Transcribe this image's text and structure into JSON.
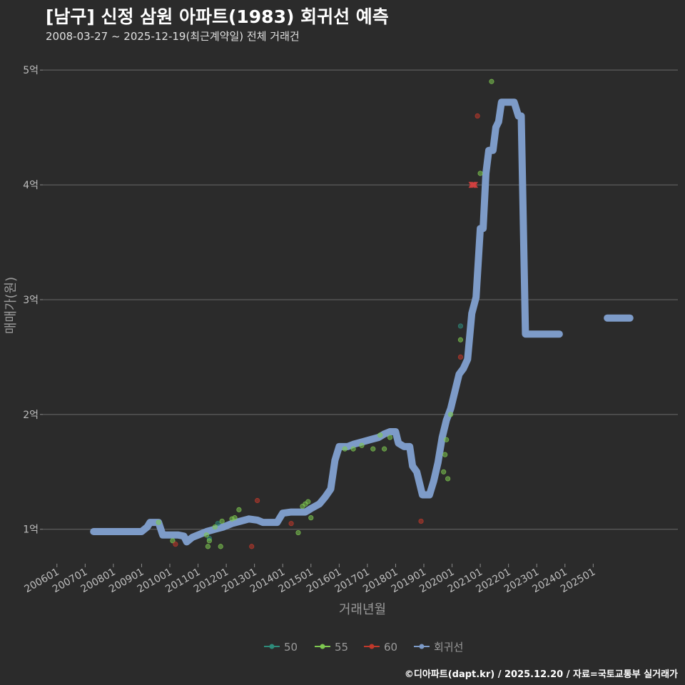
{
  "title": "[남구] 신정 삼원 아파트(1983) 회귀선 예측",
  "subtitle": "2008-03-27 ~ 2025-12-19(최근계약일) 전체 거래건",
  "caption": "©디아파트(dapt.kr) / 2025.12.20 / 자료=국토교통부 실거래가",
  "chart_data": {
    "type": "scatter",
    "title": "[남구] 신정 삼원 아파트(1983) 회귀선 예측",
    "xlabel": "거래년월",
    "ylabel": "매매가(원)",
    "ylim": [
      0.7,
      5.2
    ],
    "xlim": [
      2005.5,
      2028.0
    ],
    "grid": true,
    "legend_position": "bottom",
    "y_ticks": [
      {
        "value": 1,
        "label": "1억"
      },
      {
        "value": 2,
        "label": "2억"
      },
      {
        "value": 3,
        "label": "3억"
      },
      {
        "value": 4,
        "label": "4억"
      },
      {
        "value": 5,
        "label": "5억"
      }
    ],
    "x_ticks": [
      {
        "value": 2006.0,
        "label": "200601"
      },
      {
        "value": 2007.0,
        "label": "200701"
      },
      {
        "value": 2008.0,
        "label": "200801"
      },
      {
        "value": 2009.0,
        "label": "200901"
      },
      {
        "value": 2010.0,
        "label": "201001"
      },
      {
        "value": 2011.0,
        "label": "201101"
      },
      {
        "value": 2012.0,
        "label": "201201"
      },
      {
        "value": 2013.0,
        "label": "201301"
      },
      {
        "value": 2014.0,
        "label": "201401"
      },
      {
        "value": 2015.0,
        "label": "201501"
      },
      {
        "value": 2016.0,
        "label": "201601"
      },
      {
        "value": 2017.0,
        "label": "201701"
      },
      {
        "value": 2018.0,
        "label": "201801"
      },
      {
        "value": 2019.0,
        "label": "201901"
      },
      {
        "value": 2020.0,
        "label": "202001"
      },
      {
        "value": 2021.0,
        "label": "202101"
      },
      {
        "value": 2022.0,
        "label": "202201"
      },
      {
        "value": 2023.0,
        "label": "202301"
      },
      {
        "value": 2024.0,
        "label": "202401"
      },
      {
        "value": 2025.0,
        "label": "202501"
      }
    ],
    "series": [
      {
        "name": "50",
        "kind": "points",
        "color": "#2e8b7a",
        "points": [
          [
            2011.4,
            0.92
          ],
          [
            2011.7,
            1.05
          ],
          [
            2020.3,
            2.77
          ]
        ]
      },
      {
        "name": "55",
        "kind": "points",
        "color": "#7ec850",
        "points": [
          [
            2009.6,
            1.06
          ],
          [
            2010.1,
            0.9
          ],
          [
            2011.3,
            0.95
          ],
          [
            2011.35,
            0.85
          ],
          [
            2011.4,
            0.9
          ],
          [
            2011.6,
            1.02
          ],
          [
            2011.8,
            0.85
          ],
          [
            2011.85,
            1.07
          ],
          [
            2012.2,
            1.09
          ],
          [
            2012.3,
            1.1
          ],
          [
            2012.45,
            1.17
          ],
          [
            2014.55,
            0.97
          ],
          [
            2014.7,
            1.2
          ],
          [
            2014.8,
            1.22
          ],
          [
            2014.9,
            1.24
          ],
          [
            2015.0,
            1.1
          ],
          [
            2016.2,
            1.7
          ],
          [
            2016.5,
            1.7
          ],
          [
            2016.8,
            1.73
          ],
          [
            2017.2,
            1.7
          ],
          [
            2017.45,
            1.82
          ],
          [
            2017.6,
            1.7
          ],
          [
            2017.8,
            1.8
          ],
          [
            2019.7,
            1.5
          ],
          [
            2019.75,
            1.65
          ],
          [
            2019.8,
            1.78
          ],
          [
            2019.85,
            1.44
          ],
          [
            2019.95,
            2.0
          ],
          [
            2020.3,
            2.65
          ],
          [
            2021.0,
            4.1
          ],
          [
            2021.4,
            4.9
          ]
        ]
      },
      {
        "name": "60",
        "kind": "points",
        "color": "#c0392b",
        "points": [
          [
            2010.2,
            0.87
          ],
          [
            2012.9,
            0.85
          ],
          [
            2013.1,
            1.25
          ],
          [
            2014.3,
            1.05
          ],
          [
            2018.9,
            1.07
          ],
          [
            2020.3,
            2.5
          ],
          [
            2020.7,
            4.0
          ],
          [
            2020.75,
            4.0
          ],
          [
            2020.8,
            4.0
          ],
          [
            2020.9,
            4.6
          ]
        ]
      },
      {
        "name": "회귀선",
        "kind": "line",
        "color": "#7d9bc8",
        "segments": [
          [
            [
              2007.3,
              0.98
            ],
            [
              2009.0,
              0.98
            ],
            [
              2009.2,
              1.02
            ],
            [
              2009.3,
              1.06
            ],
            [
              2009.6,
              1.06
            ],
            [
              2009.75,
              0.95
            ],
            [
              2010.0,
              0.95
            ],
            [
              2010.3,
              0.95
            ],
            [
              2010.5,
              0.94
            ],
            [
              2010.6,
              0.89
            ],
            [
              2010.8,
              0.93
            ],
            [
              2011.0,
              0.95
            ],
            [
              2011.3,
              0.98
            ],
            [
              2011.6,
              1.0
            ],
            [
              2011.9,
              1.02
            ],
            [
              2012.2,
              1.05
            ],
            [
              2012.5,
              1.07
            ],
            [
              2012.8,
              1.09
            ],
            [
              2013.1,
              1.08
            ],
            [
              2013.3,
              1.06
            ],
            [
              2013.6,
              1.06
            ],
            [
              2013.8,
              1.06
            ],
            [
              2014.0,
              1.14
            ],
            [
              2014.3,
              1.15
            ],
            [
              2014.5,
              1.15
            ],
            [
              2014.8,
              1.15
            ],
            [
              2015.0,
              1.18
            ],
            [
              2015.3,
              1.22
            ],
            [
              2015.5,
              1.28
            ],
            [
              2015.7,
              1.35
            ],
            [
              2015.85,
              1.6
            ],
            [
              2016.0,
              1.72
            ],
            [
              2016.3,
              1.72
            ],
            [
              2016.5,
              1.74
            ],
            [
              2016.8,
              1.76
            ],
            [
              2017.1,
              1.78
            ],
            [
              2017.4,
              1.8
            ],
            [
              2017.6,
              1.83
            ],
            [
              2017.8,
              1.85
            ],
            [
              2018.0,
              1.85
            ],
            [
              2018.1,
              1.75
            ],
            [
              2018.3,
              1.72
            ],
            [
              2018.5,
              1.72
            ],
            [
              2018.6,
              1.55
            ],
            [
              2018.75,
              1.5
            ],
            [
              2018.95,
              1.3
            ],
            [
              2019.2,
              1.3
            ],
            [
              2019.35,
              1.42
            ],
            [
              2019.5,
              1.58
            ],
            [
              2019.65,
              1.8
            ],
            [
              2019.8,
              1.95
            ],
            [
              2019.95,
              2.05
            ],
            [
              2020.1,
              2.2
            ],
            [
              2020.25,
              2.35
            ],
            [
              2020.4,
              2.4
            ],
            [
              2020.55,
              2.48
            ],
            [
              2020.7,
              2.88
            ],
            [
              2020.85,
              3.02
            ],
            [
              2021.0,
              3.62
            ],
            [
              2021.1,
              3.62
            ],
            [
              2021.2,
              4.1
            ],
            [
              2021.3,
              4.3
            ],
            [
              2021.45,
              4.3
            ],
            [
              2021.55,
              4.5
            ],
            [
              2021.65,
              4.55
            ],
            [
              2021.75,
              4.72
            ],
            [
              2022.2,
              4.72
            ],
            [
              2022.35,
              4.6
            ],
            [
              2022.45,
              4.6
            ],
            [
              2022.6,
              2.7
            ],
            [
              2023.2,
              2.7
            ],
            [
              2023.8,
              2.7
            ]
          ],
          [
            [
              2025.5,
              2.84
            ],
            [
              2026.3,
              2.84
            ]
          ]
        ]
      }
    ]
  }
}
